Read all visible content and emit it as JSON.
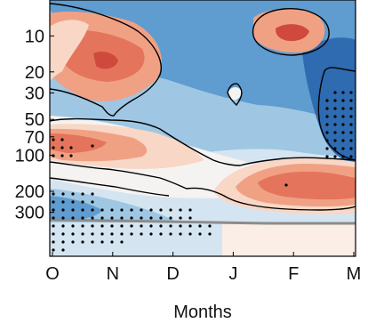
{
  "chart_data": {
    "type": "heatmap",
    "title": "",
    "xlabel": "Months",
    "ylabel": "",
    "x_ticks": [
      "O",
      "N",
      "D",
      "J",
      "F",
      "M"
    ],
    "y_ticks": [
      "10",
      "20",
      "30",
      "50",
      "70",
      "100",
      "200",
      "300"
    ],
    "y_tick_values": [
      10,
      20,
      30,
      50,
      70,
      100,
      200,
      300
    ],
    "y_scale": "log",
    "y_reversed": true,
    "ylim": [
      5,
      700
    ],
    "colors": {
      "strong_red": "#cf4a3c",
      "red": "#e4755c",
      "light_red": "#f0a184",
      "pale_red": "#f8d7c6",
      "white": "#f5f3f2",
      "pale_blue": "#d4e5f1",
      "light_blue": "#9fc7e3",
      "blue": "#5f9ccf",
      "dark_blue": "#2e6bb0",
      "tropopause_line": "#8c8c8c",
      "stipple": "#000000"
    },
    "stippling": "significant regions marked by black dots",
    "grid": false
  }
}
